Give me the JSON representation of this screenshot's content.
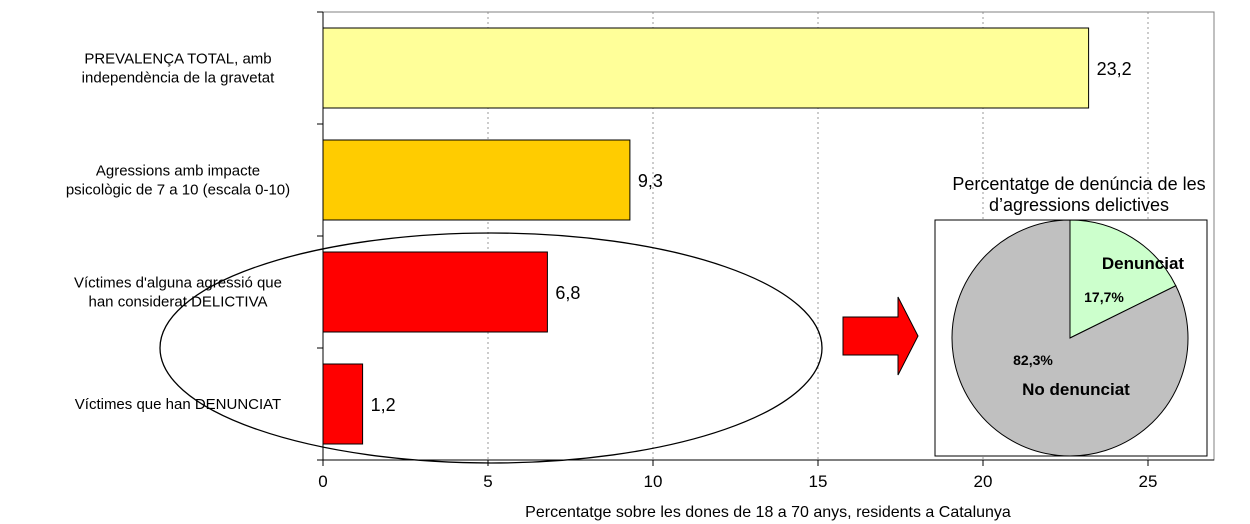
{
  "chart_data": [
    {
      "type": "bar",
      "orientation": "horizontal",
      "categories": [
        [
          "PREVALENÇA TOTAL, amb",
          "independència de la gravetat"
        ],
        [
          "Agressions amb impacte",
          "psicològic de 7 a 10 (escala 0-10)"
        ],
        [
          "Víctimes d'alguna agressió que",
          "han considerat DELICTIVA"
        ],
        [
          "Víctimes que han DENUNCIAT"
        ]
      ],
      "values": [
        23.2,
        9.3,
        6.8,
        1.2
      ],
      "value_labels": [
        "23,2",
        "9,3",
        "6,8",
        "1,2"
      ],
      "colors": [
        "#ffff99",
        "#ffcc00",
        "#ff0000",
        "#ff0000"
      ],
      "xlabel": "Percentatge sobre les dones de 18 a 70 anys, residents a Catalunya",
      "xlim": [
        0,
        27
      ],
      "xticks": [
        0,
        5,
        10,
        15,
        20,
        25
      ],
      "grid": "vertical dotted"
    },
    {
      "type": "pie",
      "title": [
        "Percentatge de denúncia de les",
        "d’agressions delictives"
      ],
      "slices": [
        {
          "label": "Denunciat",
          "value": 17.7,
          "value_label": "17,7%",
          "color": "#ccffcc"
        },
        {
          "label": "No denunciat",
          "value": 82.3,
          "value_label": "82,3%",
          "color": "#c0c0c0"
        }
      ]
    }
  ]
}
